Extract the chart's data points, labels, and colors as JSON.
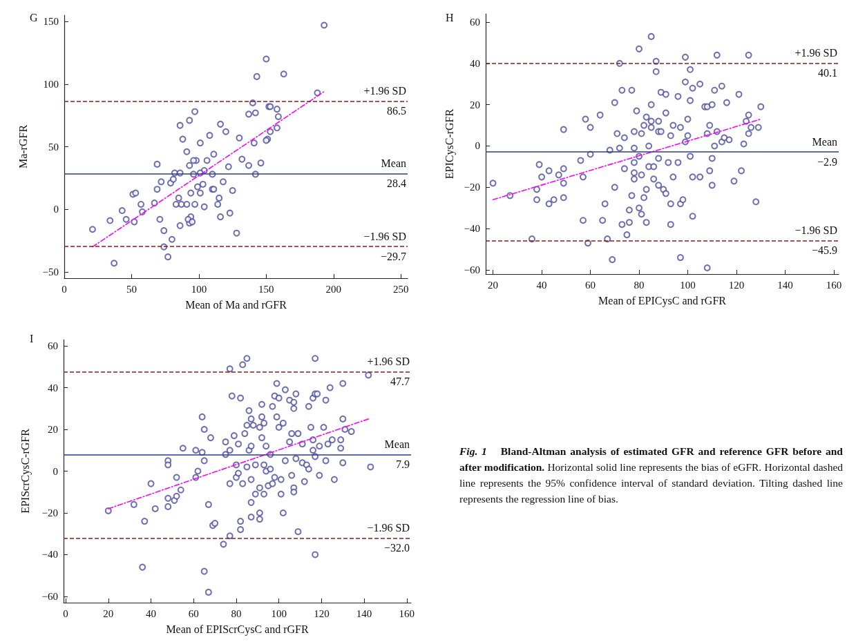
{
  "chart_data": [
    {
      "type": "scatter",
      "title": "G",
      "xlabel": "Mean of Ma and rGFR",
      "ylabel": "Ma-rGFR",
      "xlim": [
        0,
        255
      ],
      "xticks": [
        0,
        50,
        100,
        150,
        200,
        250
      ],
      "ylim": [
        -55,
        155
      ],
      "yticks": [
        -50,
        0,
        50,
        100,
        150
      ],
      "grid": false,
      "series": [
        {
          "type": "scatter",
          "color": "#4a4aa0",
          "marker": "circle",
          "x": [
            21,
            34,
            37,
            43,
            46,
            51,
            53,
            52,
            57,
            58,
            67,
            69,
            69,
            71,
            74,
            74,
            77,
            80,
            79,
            82,
            86,
            87,
            88,
            91,
            93,
            93,
            94,
            96,
            97,
            98,
            101,
            99,
            104,
            108,
            110,
            111,
            114,
            116,
            116,
            118,
            120,
            122,
            123,
            125,
            128,
            130,
            132,
            137,
            140,
            142,
            143,
            141,
            146,
            142,
            137,
            152,
            151,
            83,
            85,
            91,
            94,
            97,
            101,
            103,
            104,
            106,
            110,
            111,
            115,
            101,
            96,
            93,
            86,
            81,
            72,
            92,
            95,
            86,
            150,
            163,
            193,
            188,
            153,
            158,
            159,
            158,
            153,
            150
          ],
          "values": [
            -16,
            -9,
            -43,
            -1,
            -8,
            12,
            13,
            -10,
            4,
            -2,
            5,
            16,
            36,
            -8,
            -17,
            -30,
            -38,
            -24,
            21,
            29,
            67,
            4,
            56,
            46,
            -11,
            71,
            13,
            28,
            78,
            39,
            53,
            18,
            2,
            59,
            16,
            44,
            4,
            68,
            -6,
            22,
            62,
            34,
            -3,
            15,
            -19,
            57,
            40,
            76,
            85,
            77,
            106,
            53,
            37,
            28,
            35,
            82,
            56,
            4,
            9,
            4,
            -6,
            4,
            13,
            20,
            31,
            39,
            28,
            16,
            9,
            29,
            39,
            35,
            29,
            24,
            22,
            -8,
            -10,
            -13,
            120,
            108,
            147,
            93,
            82,
            80,
            74,
            65,
            62,
            55
          ]
        },
        {
          "type": "line",
          "color": "#ff00ff",
          "line_style": "dashed",
          "x": [
            21,
            193
          ],
          "values": [
            -30,
            94
          ]
        }
      ],
      "ref_lines": [
        {
          "axis": "y",
          "value": 86.5,
          "label": "+1.96 SD",
          "color": "#8b1a1a",
          "line_style": "dashed"
        },
        {
          "axis": "y",
          "value": 28.4,
          "label": "Mean",
          "color": "#2e3a8c",
          "line_style": "solid"
        },
        {
          "axis": "y",
          "value": -29.7,
          "label": "−1.96 SD",
          "color": "#8b1a1a",
          "line_style": "dashed"
        }
      ],
      "annotations": [
        {
          "text": "86.5",
          "y": 86.5
        },
        {
          "text": "28.4",
          "y": 28.4
        },
        {
          "text": "−29.7",
          "y": -29.7
        }
      ]
    },
    {
      "type": "scatter",
      "title": "H",
      "xlabel": "Mean of EPICysC and rGFR",
      "ylabel": "EPICysC-rGFR",
      "xlim": [
        17,
        162
      ],
      "xticks": [
        20,
        40,
        60,
        80,
        100,
        120,
        140,
        160
      ],
      "ylim": [
        -62,
        64
      ],
      "yticks": [
        -60,
        -40,
        -20,
        0,
        20,
        40,
        60
      ],
      "grid": false,
      "series": [
        {
          "type": "scatter",
          "color": "#4a4aa0",
          "marker": "circle",
          "x": [
            20,
            27,
            36,
            38,
            38,
            39,
            40,
            43,
            43,
            45,
            47,
            49,
            49,
            49,
            49,
            56,
            57,
            57,
            58,
            59,
            60,
            60,
            64,
            65,
            66,
            67,
            68,
            69,
            70,
            70,
            71,
            72,
            72,
            73,
            73,
            74,
            74,
            75,
            76,
            76,
            77,
            77,
            78,
            78,
            78,
            78,
            78,
            79,
            80,
            80,
            80,
            81,
            81,
            81,
            82,
            82,
            83,
            83,
            83,
            84,
            84,
            85,
            85,
            85,
            85,
            86,
            86,
            87,
            87,
            88,
            88,
            88,
            88,
            89,
            89,
            90,
            91,
            91,
            91,
            92,
            93,
            93,
            93,
            94,
            94,
            96,
            96,
            97,
            97,
            98,
            97,
            99,
            99,
            99,
            100,
            100,
            101,
            101,
            101,
            102,
            102,
            102,
            105,
            105,
            107,
            108,
            108,
            108,
            109,
            109,
            110,
            110,
            110,
            111,
            111,
            112,
            112,
            114,
            114,
            115,
            116,
            117,
            119,
            121,
            122,
            123,
            124,
            125,
            125,
            125,
            126,
            128,
            129,
            130
          ],
          "values": [
            -18,
            -24,
            -45,
            -26,
            -21,
            -9,
            -15,
            -12,
            -28,
            -26,
            -14,
            -11,
            8,
            -18,
            -25,
            -7,
            -15,
            -36,
            13,
            -47,
            9,
            -4,
            15,
            -36,
            -28,
            -45,
            -2,
            -55,
            -20,
            21,
            6,
            40,
            -1,
            -38,
            27,
            -11,
            4,
            -43,
            -37,
            -31,
            -24,
            27,
            -8,
            7,
            -13,
            -1,
            -16,
            17,
            47,
            -30,
            -5,
            -14,
            6,
            -33,
            -25,
            10,
            -37,
            14,
            -21,
            0,
            -10,
            53,
            9,
            20,
            12,
            -16,
            -10,
            36,
            41,
            7,
            -6,
            12,
            -19,
            26,
            7,
            -21,
            25,
            16,
            -23,
            -8,
            5,
            -28,
            -38,
            -15,
            10,
            24,
            -8,
            9,
            -28,
            -26,
            -54,
            31,
            43,
            2,
            13,
            5,
            22,
            37,
            -5,
            -34,
            -15,
            28,
            -15,
            30,
            19,
            6,
            -59,
            19,
            -12,
            10,
            20,
            -6,
            -19,
            0,
            27,
            44,
            7,
            2,
            29,
            4,
            21,
            3,
            -17,
            25,
            -12,
            1,
            12,
            44,
            15,
            6,
            9,
            -27,
            9,
            19
          ]
        },
        {
          "type": "line",
          "color": "#ff00ff",
          "line_style": "dashed",
          "x": [
            20,
            130
          ],
          "values": [
            -26,
            13
          ]
        }
      ],
      "ref_lines": [
        {
          "axis": "y",
          "value": 40.1,
          "label": "+1.96 SD",
          "color": "#8b1a1a",
          "line_style": "dashed"
        },
        {
          "axis": "y",
          "value": -2.9,
          "label": "Mean",
          "color": "#2e3a8c",
          "line_style": "solid"
        },
        {
          "axis": "y",
          "value": -45.9,
          "label": "−1.96 SD",
          "color": "#8b1a1a",
          "line_style": "dashed"
        }
      ],
      "annotations": [
        {
          "text": "40.1",
          "y": 40.1
        },
        {
          "text": "−2.9",
          "y": -2.9
        },
        {
          "text": "−45.9",
          "y": -45.9
        }
      ]
    },
    {
      "type": "scatter",
      "title": "I",
      "xlabel": "Mean of EPIScrCysC and rGFR",
      "ylabel": "EPIScrCysC-rGFR",
      "xlim": [
        -1,
        162
      ],
      "xticks": [
        0,
        20,
        40,
        60,
        80,
        100,
        120,
        140,
        160
      ],
      "ylim": [
        -63,
        63
      ],
      "yticks": [
        -60,
        -40,
        -20,
        0,
        20,
        40,
        60
      ],
      "grid": false,
      "series": [
        {
          "type": "scatter",
          "color": "#4a4aa0",
          "marker": "circle",
          "x": [
            20,
            32,
            36,
            37,
            40,
            42,
            48,
            48,
            48,
            48,
            51,
            52,
            52,
            54,
            55,
            61,
            62,
            61,
            64,
            64,
            65,
            65,
            65,
            67,
            67,
            68,
            69,
            70,
            74,
            75,
            75,
            77,
            77,
            77,
            77,
            78,
            79,
            80,
            80,
            81,
            81,
            82,
            82,
            83,
            82,
            83,
            84,
            85,
            85,
            85,
            86,
            86,
            87,
            87,
            87,
            87,
            87,
            88,
            89,
            89,
            91,
            91,
            91,
            91,
            92,
            92,
            92,
            93,
            93,
            93,
            94,
            94,
            95,
            96,
            96,
            97,
            97,
            98,
            98,
            99,
            99,
            100,
            100,
            101,
            101,
            102,
            102,
            103,
            103,
            105,
            105,
            106,
            106,
            107,
            107,
            107,
            107,
            108,
            108,
            109,
            109,
            111,
            111,
            112,
            113,
            114,
            114,
            115,
            116,
            116,
            116,
            117,
            117,
            117,
            117,
            118,
            119,
            119,
            121,
            122,
            122,
            123,
            124,
            125,
            126,
            129,
            129,
            130,
            130,
            130,
            131,
            134,
            142,
            143
          ],
          "values": [
            -19,
            -16,
            -46,
            -24,
            -6,
            -18,
            5,
            3,
            -13,
            -17,
            -14,
            -12,
            -3,
            -9,
            11,
            10,
            0,
            -3,
            26,
            9,
            5,
            20,
            -48,
            -16,
            -58,
            16,
            -26,
            -25,
            -35,
            14,
            8,
            49,
            -31,
            10,
            -6,
            36,
            17,
            -3,
            3,
            13,
            -1,
            35,
            -28,
            51,
            -24,
            -6,
            18,
            54,
            22,
            2,
            29,
            10,
            -22,
            -15,
            25,
            -4,
            12,
            22,
            -11,
            3,
            21,
            -8,
            -23,
            -20,
            26,
            32,
            16,
            -11,
            3,
            23,
            0,
            12,
            -7,
            8,
            1,
            -6,
            31,
            36,
            -3,
            26,
            42,
            21,
            35,
            -4,
            -11,
            23,
            -20,
            5,
            39,
            34,
            14,
            18,
            -2,
            33,
            -8,
            -10,
            30,
            37,
            6,
            18,
            -29,
            4,
            13,
            -5,
            3,
            1,
            31,
            21,
            35,
            15,
            10,
            7,
            -40,
            54,
            37,
            37,
            -2,
            12,
            21,
            34,
            5,
            13,
            40,
            15,
            -4,
            11,
            15,
            4,
            42,
            25,
            20,
            19,
            46,
            2
          ]
        },
        {
          "type": "line",
          "color": "#ff00ff",
          "line_style": "dashed",
          "x": [
            20,
            142
          ],
          "values": [
            -18,
            25
          ]
        }
      ],
      "ref_lines": [
        {
          "axis": "y",
          "value": 47.7,
          "label": "+1.96 SD",
          "color": "#8b1a1a",
          "line_style": "dashed"
        },
        {
          "axis": "y",
          "value": 7.9,
          "label": "Mean",
          "color": "#2e3a8c",
          "line_style": "solid"
        },
        {
          "axis": "y",
          "value": -32.0,
          "label": "−1.96 SD",
          "color": "#8b1a1a",
          "line_style": "dashed"
        }
      ],
      "annotations": [
        {
          "text": "47.7",
          "y": 47.7
        },
        {
          "text": "7.9",
          "y": 7.9
        },
        {
          "text": "−32.0",
          "y": -32.0
        }
      ]
    },
    {
      "type": "other",
      "annotations": [
        "Fig. 1",
        "Bland-Altman analysis of estimated GFR and reference GFR before and after modification.",
        "Horizontal solid line represents the bias of eGFR. Horizontal dashed line represents the 95% confidence interval of standard deviation. Tilting dashed line represents the regression line of bias."
      ]
    }
  ]
}
